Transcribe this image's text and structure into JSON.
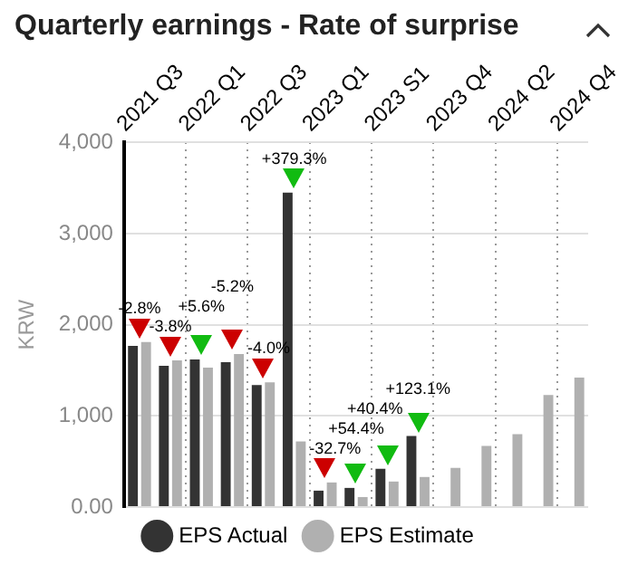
{
  "chart_data": {
    "type": "bar",
    "title": "Quarterly earnings - Rate of surprise",
    "ylabel": "KRW",
    "categories": [
      "2021 Q3",
      null,
      "2022 Q1",
      null,
      "2022 Q3",
      null,
      "2023 Q1",
      null,
      "2023 S1",
      null,
      "2023 Q4",
      null,
      "2024 Q2",
      null,
      "2024 Q4"
    ],
    "series": [
      {
        "name": "EPS Actual",
        "color": "#333333",
        "values": [
          1770,
          1550,
          1620,
          1590,
          1340,
          3450,
          180,
          210,
          420,
          780,
          null,
          null,
          null,
          null,
          null
        ]
      },
      {
        "name": "EPS Estimate",
        "color": "#b0b0b0",
        "values": [
          1810,
          1610,
          1530,
          1680,
          1370,
          720,
          270,
          110,
          280,
          330,
          430,
          670,
          800,
          1230,
          1420
        ]
      }
    ],
    "ylim": [
      0,
      4000
    ],
    "yticks": [
      {
        "value": 0,
        "label": "0.00"
      },
      {
        "value": 1000,
        "label": "1,000"
      },
      {
        "value": 2000,
        "label": "2,000"
      },
      {
        "value": 3000,
        "label": "3,000"
      },
      {
        "value": 4000,
        "label": "4,000"
      }
    ],
    "annotations": [
      "-2.8%",
      "-3.8%",
      "+5.6%",
      "-5.2%",
      "-4.0%",
      "+379.3%",
      "-32.7%",
      "+54.4%",
      "+40.4%",
      "+123.1%"
    ],
    "grid": true,
    "legend": "bottom"
  }
}
